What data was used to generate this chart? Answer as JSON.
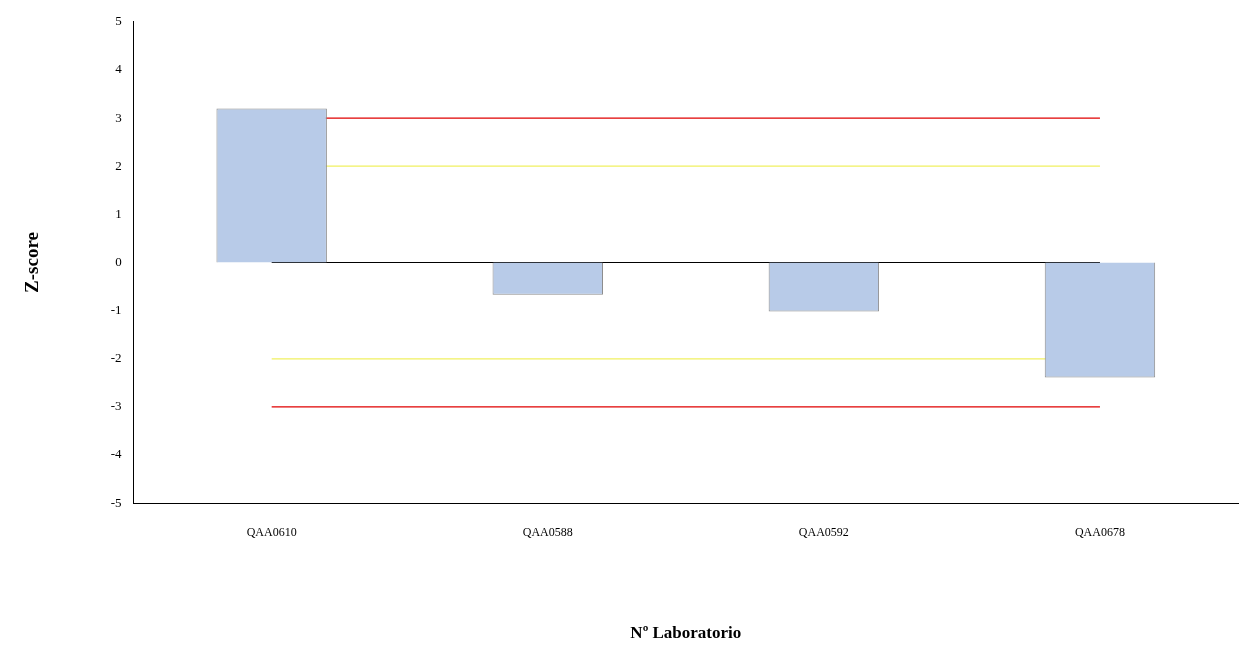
{
  "chart_data": {
    "type": "bar",
    "xlabel": "Nº Laboratorio",
    "ylabel": "Z-score",
    "categories": [
      "QAA0610",
      "QAA0588",
      "QAA0592",
      "QAA0678"
    ],
    "values": [
      3.2,
      -0.67,
      -1.02,
      -2.39
    ],
    "color": "#b8cbe8",
    "ylim": [
      -5,
      5
    ],
    "yticks": [
      -5,
      -4,
      -3,
      -2,
      -1,
      0,
      1,
      2,
      3,
      4,
      5
    ],
    "grid": false,
    "legend": false,
    "ref_lines": [
      {
        "axis": "y",
        "value": 3,
        "color": "#e00000"
      },
      {
        "axis": "y",
        "value": 2,
        "color": "#f0f060"
      },
      {
        "axis": "y",
        "value": 0,
        "color": "#000000"
      },
      {
        "axis": "y",
        "value": -2,
        "color": "#f0f060"
      },
      {
        "axis": "y",
        "value": -3,
        "color": "#e00000"
      }
    ]
  }
}
